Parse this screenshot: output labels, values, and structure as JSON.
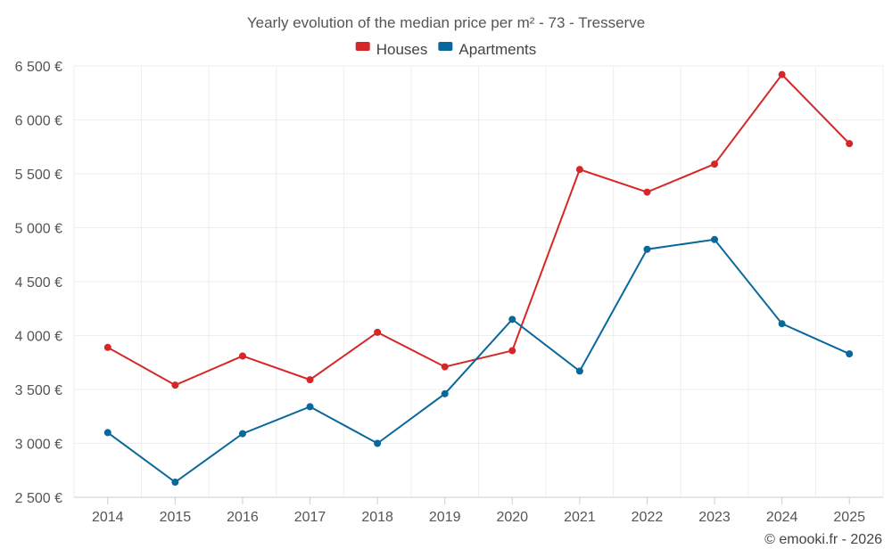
{
  "chart_data": {
    "type": "line",
    "title": "Yearly evolution of the median price per m² - 73 - Tresserve",
    "categories": [
      "2014",
      "2015",
      "2016",
      "2017",
      "2018",
      "2019",
      "2020",
      "2021",
      "2022",
      "2023",
      "2024",
      "2025"
    ],
    "series": [
      {
        "name": "Houses",
        "color": "#d62728",
        "values": [
          3890,
          3540,
          3810,
          3590,
          4030,
          3710,
          3860,
          5540,
          5330,
          5590,
          6420,
          5780
        ]
      },
      {
        "name": "Apartments",
        "color": "#08689b",
        "values": [
          3100,
          2640,
          3090,
          3340,
          3000,
          3460,
          4150,
          3670,
          4800,
          4890,
          4110,
          3830
        ]
      }
    ],
    "ylim": [
      2500,
      6500
    ],
    "yticks": [
      2500,
      3000,
      3500,
      4000,
      4500,
      5000,
      5500,
      6000,
      6500
    ],
    "ytick_labels": [
      "2 500 €",
      "3 000 €",
      "3 500 €",
      "4 000 €",
      "4 500 €",
      "5 000 €",
      "5 500 €",
      "6 000 €",
      "6 500 €"
    ],
    "xlabel": "",
    "ylabel": "",
    "legend_position": "top-center",
    "grid": true
  },
  "credit": "© emooki.fr - 2026"
}
